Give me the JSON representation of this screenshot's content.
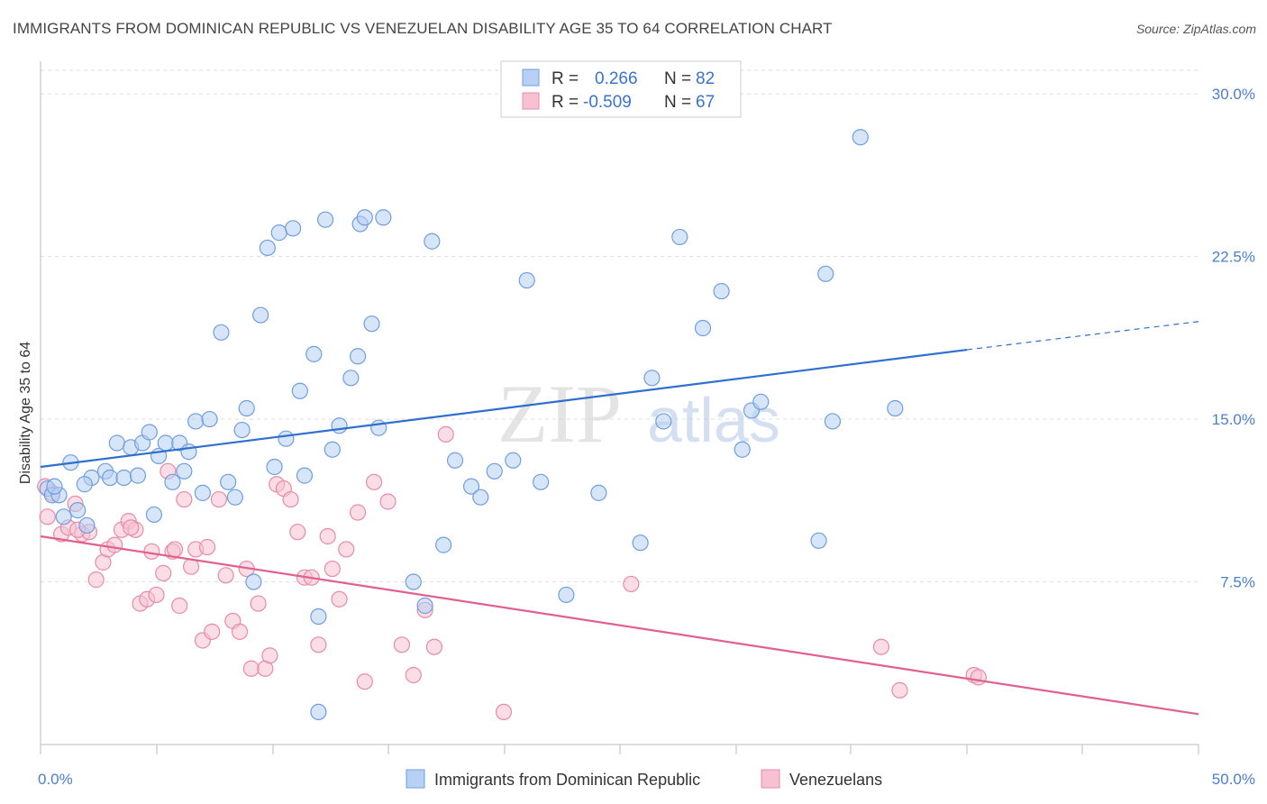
{
  "title": "IMMIGRANTS FROM DOMINICAN REPUBLIC VS VENEZUELAN DISABILITY AGE 35 TO 64 CORRELATION CHART",
  "source": "Source: ZipAtlas.com",
  "watermark": {
    "zip": "ZIP",
    "atlas": "atlas"
  },
  "colors": {
    "blue_fill": "#b7d0f3",
    "blue_stroke": "#6f9ee0",
    "blue_line": "#2f6fce",
    "pink_fill": "#f7c1d2",
    "pink_stroke": "#e98aa9",
    "pink_line": "#e0608e",
    "tick_text": "#4a7fd0",
    "grid": "#dddddd"
  },
  "legend": {
    "rows": [
      {
        "r_label": "R =",
        "r_value": "0.266",
        "n_label": "N =",
        "n_value": "82"
      },
      {
        "r_label": "R =",
        "r_value": "-0.509",
        "n_label": "N =",
        "n_value": "67"
      }
    ]
  },
  "bottom_legend": [
    "Immigrants from Dominican Republic",
    "Venezuelans"
  ],
  "chart_data": {
    "type": "scatter",
    "title": "IMMIGRANTS FROM DOMINICAN REPUBLIC VS VENEZUELAN DISABILITY AGE 35 TO 64 CORRELATION CHART",
    "xlabel": "",
    "ylabel": "Disability Age 35 to 64",
    "xlim": [
      0,
      50
    ],
    "ylim": [
      0,
      31.5
    ],
    "x_tick_labels": [
      {
        "value": 0,
        "label": "0.0%"
      },
      {
        "value": 50,
        "label": "50.0%"
      }
    ],
    "y_ticks": [
      {
        "value": 7.5,
        "label": "7.5%"
      },
      {
        "value": 15,
        "label": "15.0%"
      },
      {
        "value": 22.5,
        "label": "22.5%"
      },
      {
        "value": 30,
        "label": "30.0%"
      }
    ],
    "grid": "horizontal dashed",
    "legend_position": "top-center",
    "series": [
      {
        "name": "Immigrants from Dominican Republic",
        "color": "blue",
        "R": 0.266,
        "N": 82,
        "trend": {
          "x0": 0,
          "y0": 12.8,
          "x1": 40,
          "y1": 18.2,
          "dashed_to_x": 50,
          "dashed_to_y": 19.5
        },
        "points": [
          [
            0.3,
            11.8
          ],
          [
            0.5,
            11.5
          ],
          [
            0.8,
            11.5
          ],
          [
            1.0,
            10.5
          ],
          [
            1.3,
            13.0
          ],
          [
            1.6,
            10.8
          ],
          [
            2.0,
            10.1
          ],
          [
            2.2,
            12.3
          ],
          [
            2.8,
            12.6
          ],
          [
            3.0,
            12.3
          ],
          [
            3.3,
            13.9
          ],
          [
            3.6,
            12.3
          ],
          [
            3.9,
            13.7
          ],
          [
            4.2,
            12.4
          ],
          [
            4.4,
            13.9
          ],
          [
            4.7,
            14.4
          ],
          [
            4.9,
            10.6
          ],
          [
            5.1,
            13.3
          ],
          [
            5.4,
            13.9
          ],
          [
            5.7,
            12.1
          ],
          [
            6.0,
            13.9
          ],
          [
            6.2,
            12.6
          ],
          [
            6.4,
            13.5
          ],
          [
            6.7,
            14.9
          ],
          [
            7.0,
            11.6
          ],
          [
            7.3,
            15.0
          ],
          [
            7.8,
            19.0
          ],
          [
            8.1,
            12.1
          ],
          [
            8.4,
            11.4
          ],
          [
            8.7,
            14.5
          ],
          [
            8.9,
            15.5
          ],
          [
            9.2,
            7.5
          ],
          [
            9.5,
            19.8
          ],
          [
            9.8,
            22.9
          ],
          [
            10.1,
            12.8
          ],
          [
            10.3,
            23.6
          ],
          [
            10.6,
            14.1
          ],
          [
            10.9,
            23.8
          ],
          [
            11.2,
            16.3
          ],
          [
            11.4,
            12.4
          ],
          [
            11.8,
            18.0
          ],
          [
            12.0,
            1.5
          ],
          [
            12.0,
            5.9
          ],
          [
            12.3,
            24.2
          ],
          [
            12.6,
            13.6
          ],
          [
            12.9,
            14.7
          ],
          [
            13.4,
            16.9
          ],
          [
            13.7,
            17.9
          ],
          [
            13.8,
            24.0
          ],
          [
            14.0,
            24.3
          ],
          [
            14.3,
            19.4
          ],
          [
            14.6,
            14.6
          ],
          [
            14.8,
            24.3
          ],
          [
            16.1,
            7.5
          ],
          [
            16.6,
            6.4
          ],
          [
            16.9,
            23.2
          ],
          [
            17.4,
            9.2
          ],
          [
            17.9,
            13.1
          ],
          [
            18.6,
            11.9
          ],
          [
            19.0,
            11.4
          ],
          [
            19.6,
            12.6
          ],
          [
            20.4,
            13.1
          ],
          [
            21.0,
            21.4
          ],
          [
            21.6,
            12.1
          ],
          [
            22.7,
            6.9
          ],
          [
            24.1,
            11.6
          ],
          [
            25.9,
            9.3
          ],
          [
            26.4,
            16.9
          ],
          [
            26.9,
            14.9
          ],
          [
            27.6,
            23.4
          ],
          [
            28.6,
            19.2
          ],
          [
            29.4,
            20.9
          ],
          [
            30.3,
            13.6
          ],
          [
            30.7,
            15.4
          ],
          [
            31.1,
            15.8
          ],
          [
            33.6,
            9.4
          ],
          [
            33.9,
            21.7
          ],
          [
            34.2,
            14.9
          ],
          [
            35.4,
            28.0
          ],
          [
            36.9,
            15.5
          ],
          [
            0.6,
            11.9
          ],
          [
            1.9,
            12.0
          ]
        ]
      },
      {
        "name": "Venezuelans",
        "color": "pink",
        "R": -0.509,
        "N": 67,
        "trend": {
          "x0": 0,
          "y0": 9.6,
          "x1": 50,
          "y1": 1.4
        },
        "points": [
          [
            0.3,
            10.5
          ],
          [
            0.5,
            11.6
          ],
          [
            0.9,
            9.7
          ],
          [
            1.2,
            10.0
          ],
          [
            1.5,
            11.1
          ],
          [
            1.8,
            9.7
          ],
          [
            2.1,
            9.8
          ],
          [
            2.4,
            7.6
          ],
          [
            2.7,
            8.4
          ],
          [
            2.9,
            9.0
          ],
          [
            3.2,
            9.2
          ],
          [
            3.5,
            9.9
          ],
          [
            3.8,
            10.3
          ],
          [
            4.1,
            9.9
          ],
          [
            4.3,
            6.5
          ],
          [
            4.6,
            6.7
          ],
          [
            4.8,
            8.9
          ],
          [
            5.0,
            6.9
          ],
          [
            5.3,
            7.9
          ],
          [
            5.5,
            12.6
          ],
          [
            5.7,
            8.9
          ],
          [
            6.0,
            6.4
          ],
          [
            6.2,
            11.3
          ],
          [
            6.5,
            8.2
          ],
          [
            6.7,
            9.0
          ],
          [
            7.0,
            4.8
          ],
          [
            7.2,
            9.1
          ],
          [
            7.4,
            5.2
          ],
          [
            7.7,
            11.3
          ],
          [
            8.0,
            7.8
          ],
          [
            8.3,
            5.7
          ],
          [
            8.6,
            5.2
          ],
          [
            8.9,
            8.1
          ],
          [
            9.1,
            3.5
          ],
          [
            9.4,
            6.5
          ],
          [
            9.7,
            3.5
          ],
          [
            9.9,
            4.1
          ],
          [
            10.2,
            12.0
          ],
          [
            10.5,
            11.8
          ],
          [
            10.8,
            11.3
          ],
          [
            11.1,
            9.8
          ],
          [
            11.4,
            7.7
          ],
          [
            11.7,
            7.7
          ],
          [
            12.0,
            4.6
          ],
          [
            12.4,
            9.6
          ],
          [
            12.6,
            8.1
          ],
          [
            12.9,
            6.7
          ],
          [
            13.2,
            9.0
          ],
          [
            13.7,
            10.7
          ],
          [
            14.0,
            2.9
          ],
          [
            14.4,
            12.1
          ],
          [
            15.0,
            11.2
          ],
          [
            15.6,
            4.6
          ],
          [
            16.1,
            3.2
          ],
          [
            16.6,
            6.2
          ],
          [
            17.0,
            4.5
          ],
          [
            17.5,
            14.3
          ],
          [
            20.0,
            1.5
          ],
          [
            25.5,
            7.4
          ],
          [
            36.3,
            4.5
          ],
          [
            37.1,
            2.5
          ],
          [
            40.3,
            3.2
          ],
          [
            40.5,
            3.1
          ],
          [
            0.2,
            11.9
          ],
          [
            1.6,
            9.9
          ],
          [
            3.9,
            10.0
          ],
          [
            5.8,
            9.0
          ]
        ]
      }
    ]
  }
}
